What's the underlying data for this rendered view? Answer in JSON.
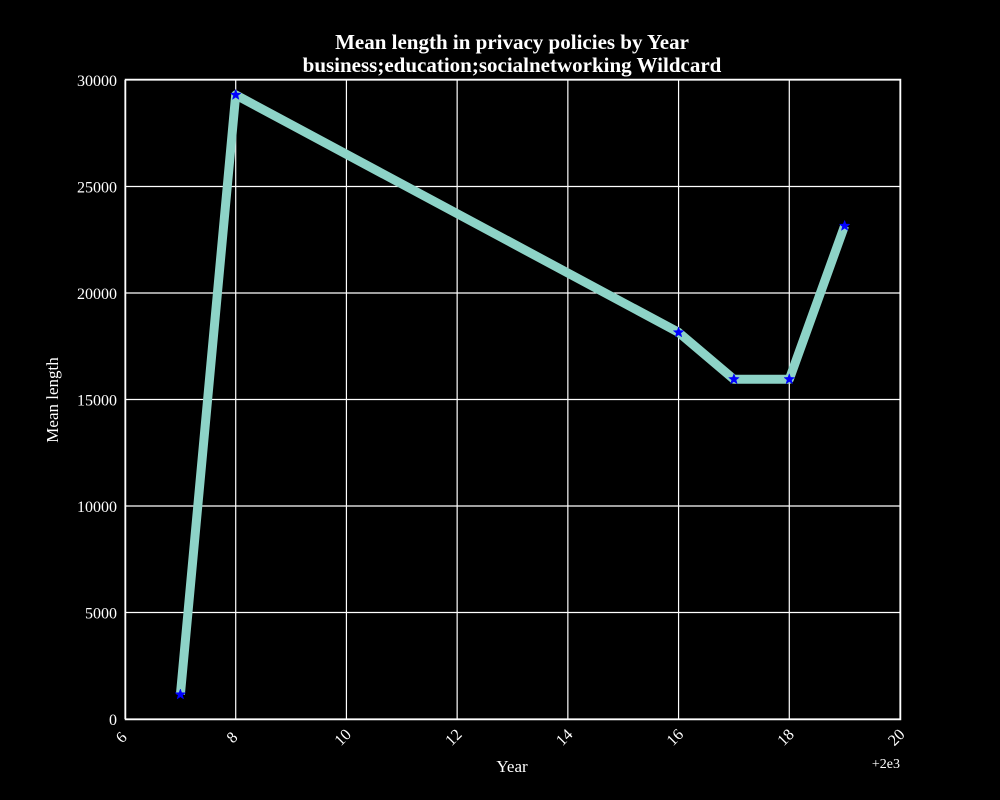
{
  "chart_data": {
    "type": "line",
    "title_line1": "Mean length in privacy policies by Year",
    "title_line2": "business;education;socialnetworking Wildcard",
    "xlabel": "Year",
    "ylabel": "Mean length",
    "x_offset_label": "+2e3",
    "xlim": [
      6,
      20
    ],
    "ylim": [
      0,
      30000
    ],
    "x_ticks": [
      6,
      8,
      10,
      12,
      14,
      16,
      18,
      20
    ],
    "x_tick_labels": [
      "6",
      "8",
      "10",
      "12",
      "14",
      "16",
      "18",
      "20"
    ],
    "y_ticks": [
      0,
      5000,
      10000,
      15000,
      20000,
      25000,
      30000
    ],
    "y_tick_labels": [
      "0",
      "5000",
      "10000",
      "15000",
      "20000",
      "25000",
      "30000"
    ],
    "grid": true,
    "series": [
      {
        "x": [
          7,
          8,
          16,
          17,
          18,
          19
        ],
        "values": [
          1150,
          29300,
          18150,
          15950,
          15950,
          23150
        ],
        "line_color": "#8dd3c7",
        "marker": "star",
        "marker_color": "#0000ff"
      }
    ]
  },
  "colors": {
    "background": "#000000",
    "foreground": "#ffffff",
    "line": "#8dd3c7",
    "marker": "#0000ff"
  }
}
